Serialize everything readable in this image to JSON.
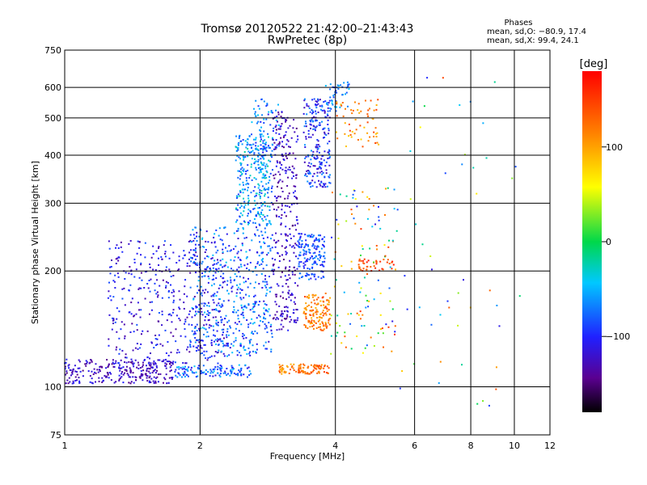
{
  "chart_data": {
    "type": "scatter",
    "title": "Tromsø 20120522 21:42:00–21:43:43",
    "subtitle": "RwPretec (8p)",
    "xlabel": "Frequency [MHz]",
    "ylabel": "Stationary phase Virtual Height [km]",
    "x_scale": "log",
    "y_scale": "log",
    "xlim": [
      1,
      12
    ],
    "ylim": [
      75,
      750
    ],
    "x_ticks": [
      "1",
      "2",
      "4",
      "6",
      "8",
      "10",
      "12"
    ],
    "y_ticks": [
      "750",
      "600",
      "500",
      "400",
      "300",
      "200",
      "100",
      "75"
    ],
    "grid": true,
    "stats": {
      "heading": "Phases",
      "line_o": "mean, sd,O: −80.9, 17.4",
      "line_x": "mean, sd,X:  99.4, 24.1"
    },
    "colorbar": {
      "label": "[deg]",
      "range": [
        -180,
        180
      ],
      "ticks": [
        "100",
        "0",
        "−100"
      ]
    },
    "clusters": [
      {
        "f": [
          1.0,
          1.75
        ],
        "h": [
          102,
          118
        ],
        "phase": [
          -150,
          -100
        ],
        "count": 260
      },
      {
        "f": [
          1.75,
          2.6
        ],
        "h": [
          106,
          114
        ],
        "phase": [
          -120,
          -40
        ],
        "count": 120
      },
      {
        "f": [
          1.25,
          2.3
        ],
        "h": [
          115,
          240
        ],
        "phase": [
          -140,
          -80
        ],
        "count": 420
      },
      {
        "f": [
          1.9,
          2.9
        ],
        "h": [
          120,
          260
        ],
        "phase": [
          -120,
          -40
        ],
        "count": 520
      },
      {
        "f": [
          2.4,
          2.9
        ],
        "h": [
          260,
          450
        ],
        "phase": [
          -100,
          -20
        ],
        "count": 300
      },
      {
        "f": [
          2.6,
          3.0
        ],
        "h": [
          400,
          560
        ],
        "phase": [
          -110,
          -40
        ],
        "count": 80
      },
      {
        "f": [
          2.9,
          3.3
        ],
        "h": [
          140,
          520
        ],
        "phase": [
          -150,
          -100
        ],
        "count": 300
      },
      {
        "f": [
          3.0,
          3.4
        ],
        "h": [
          108,
          115
        ],
        "phase": [
          90,
          140
        ],
        "count": 40
      },
      {
        "f": [
          3.3,
          3.9
        ],
        "h": [
          108,
          114
        ],
        "phase": [
          100,
          150
        ],
        "count": 60
      },
      {
        "f": [
          3.4,
          3.9
        ],
        "h": [
          140,
          175
        ],
        "phase": [
          90,
          150
        ],
        "count": 130
      },
      {
        "f": [
          3.3,
          3.8
        ],
        "h": [
          190,
          250
        ],
        "phase": [
          -110,
          -60
        ],
        "count": 160
      },
      {
        "f": [
          3.4,
          3.9
        ],
        "h": [
          330,
          560
        ],
        "phase": [
          -130,
          -60
        ],
        "count": 220
      },
      {
        "f": [
          3.8,
          4.3
        ],
        "h": [
          520,
          620
        ],
        "phase": [
          -100,
          -40
        ],
        "count": 50
      },
      {
        "f": [
          4.0,
          5.0
        ],
        "h": [
          420,
          560
        ],
        "phase": [
          80,
          150
        ],
        "count": 60
      },
      {
        "f": [
          4.5,
          5.4
        ],
        "h": [
          200,
          215
        ],
        "phase": [
          120,
          170
        ],
        "count": 40
      },
      {
        "f": [
          3.9,
          5.5
        ],
        "h": [
          120,
          330
        ],
        "phase": [
          -120,
          160
        ],
        "count": 120
      },
      {
        "f": [
          5.5,
          11.0
        ],
        "h": [
          85,
          650
        ],
        "phase": [
          -120,
          150
        ],
        "count": 50
      }
    ]
  }
}
